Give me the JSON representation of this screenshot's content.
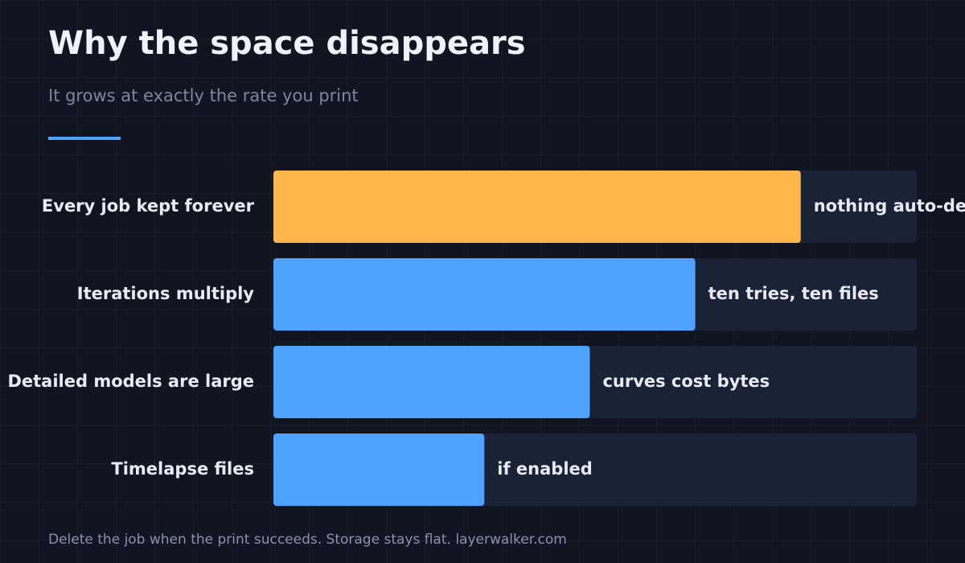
{
  "chart_data": {
    "type": "hbar",
    "title": "Why the space disappears",
    "subtitle": "It grows at exactly the rate you print",
    "categories": [
      "Every job kept forever",
      "Iterations multiply",
      "Detailed models are large",
      "Timelapse files"
    ],
    "values": [
      5,
      4,
      3,
      2
    ],
    "colors": [
      "#ffb74d",
      "#4da3ff",
      "#4da3ff",
      "#4da3ff"
    ],
    "annotations": [
      "nothing auto-deletes",
      "ten tries, ten files",
      "curves cost bytes",
      "if enabled"
    ],
    "xlim": [
      0,
      6.1
    ],
    "footer": "Delete the job when the print succeeds. Storage stays flat. layerwalker.com"
  }
}
